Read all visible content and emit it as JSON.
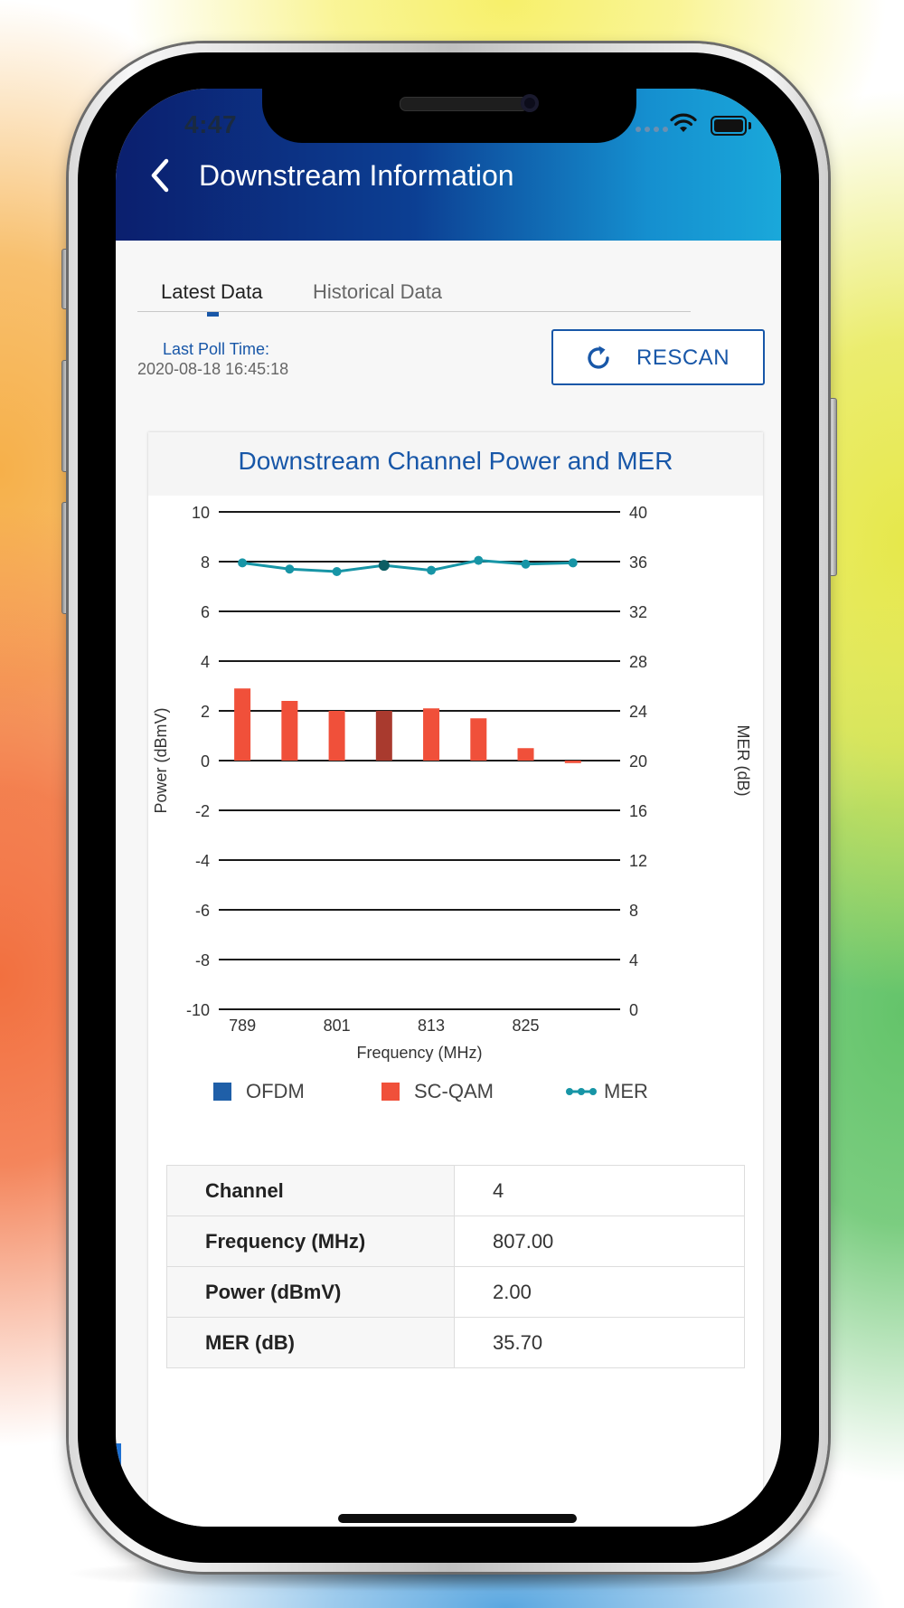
{
  "status_bar": {
    "time": "4:47",
    "icons": [
      "signal-dots-icon",
      "wifi-icon",
      "battery-icon"
    ]
  },
  "header": {
    "back_icon": "chevron-left-icon",
    "title": "Downstream Information",
    "gradient": [
      "#0b1f6e",
      "#1aa8da"
    ]
  },
  "tabs": [
    {
      "label": "Latest Data",
      "active": true
    },
    {
      "label": "Historical Data",
      "active": false
    }
  ],
  "poll": {
    "label": "Last Poll Time:",
    "value": "2020-08-18 16:45:18"
  },
  "rescan": {
    "icon": "refresh-icon",
    "label": "RESCAN"
  },
  "colors": {
    "accent": "#1857a8",
    "ofdm": "#1f5fa8",
    "scqam": "#f0503a",
    "scqam_selected": "#a93a2e",
    "mer": "#1795a6",
    "mer_selected": "#0d5e63"
  },
  "chart_data": {
    "type": "bar",
    "title": "Downstream Channel Power and MER",
    "xlabel": "Frequency (MHz)",
    "ylabel": "Power (dBmV)",
    "y2label": "MER (dB)",
    "x_ticks": [
      "789",
      "801",
      "813",
      "825"
    ],
    "y_ticks": [
      "10",
      "8",
      "6",
      "4",
      "2",
      "0",
      "-2",
      "-4",
      "-6",
      "-8",
      "-10"
    ],
    "y2_ticks": [
      "40",
      "36",
      "32",
      "28",
      "24",
      "20",
      "16",
      "12",
      "8",
      "4",
      "0"
    ],
    "ylim": [
      -10,
      10
    ],
    "y2lim": [
      0,
      40
    ],
    "grid": true,
    "legend_position": "bottom",
    "selected_index": 3,
    "series": [
      {
        "name": "SC-QAM",
        "type": "bar",
        "frequencies": [
          789,
          795,
          801,
          807,
          813,
          819,
          825,
          831
        ],
        "values": [
          2.9,
          2.4,
          2.0,
          2.0,
          2.1,
          1.7,
          0.5,
          -0.1
        ]
      },
      {
        "name": "MER",
        "type": "line",
        "frequencies": [
          789,
          795,
          801,
          807,
          813,
          819,
          825,
          831
        ],
        "values": [
          35.9,
          35.4,
          35.2,
          35.7,
          35.3,
          36.1,
          35.8,
          35.9
        ]
      }
    ],
    "legend": [
      "OFDM",
      "SC-QAM",
      "MER"
    ]
  },
  "details": [
    {
      "label": "Channel",
      "value": "4"
    },
    {
      "label": "Frequency (MHz)",
      "value": "807.00"
    },
    {
      "label": "Power (dBmV)",
      "value": "2.00"
    },
    {
      "label": "MER (dB)",
      "value": "35.70"
    }
  ]
}
